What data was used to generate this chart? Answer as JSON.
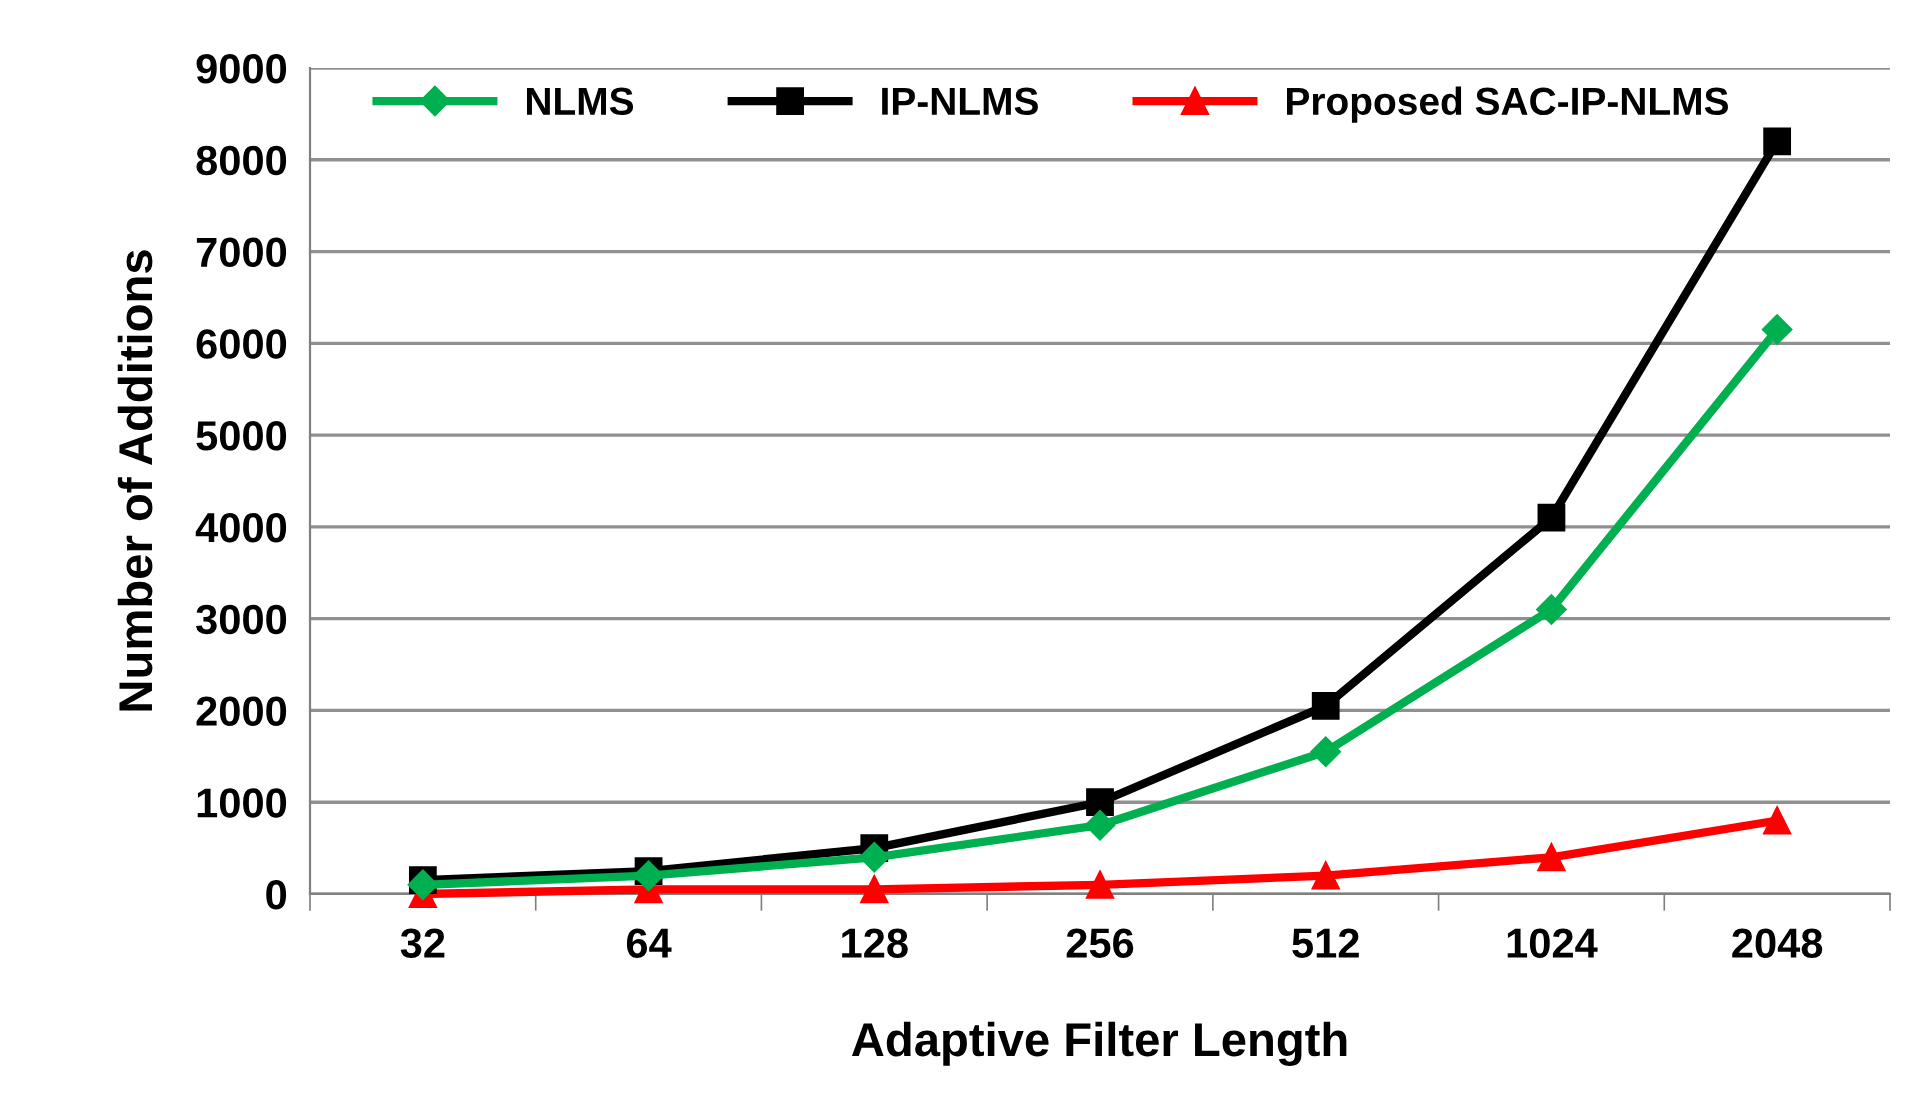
{
  "chart_data": {
    "type": "line",
    "xlabel": "Adaptive Filter Length",
    "ylabel": "Number of Additions",
    "categories": [
      "32",
      "64",
      "128",
      "256",
      "512",
      "1024",
      "2048"
    ],
    "series": [
      {
        "name": "NLMS",
        "color": "#00b050",
        "marker": "diamond",
        "values": [
          100,
          200,
          400,
          750,
          1550,
          3100,
          6150
        ]
      },
      {
        "name": "IP-NLMS",
        "color": "#000000",
        "marker": "square",
        "values": [
          150,
          250,
          500,
          1000,
          2050,
          4100,
          8200
        ]
      },
      {
        "name": "Proposed SAC-IP-NLMS",
        "color": "#ff0000",
        "marker": "triangle",
        "values": [
          0,
          50,
          50,
          100,
          200,
          400,
          800
        ]
      }
    ],
    "ylim": [
      0,
      9000
    ],
    "yticks": [
      0,
      1000,
      2000,
      3000,
      4000,
      5000,
      6000,
      7000,
      8000,
      9000
    ],
    "grid": "y",
    "legend": "top left",
    "line_style": "solid"
  }
}
